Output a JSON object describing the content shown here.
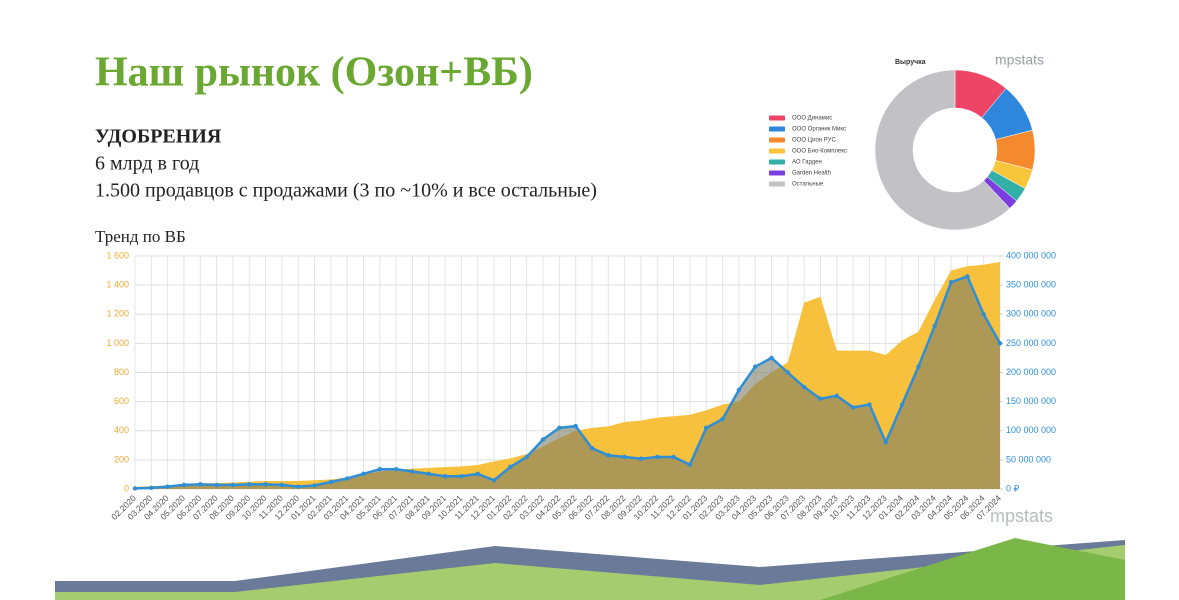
{
  "slide": {
    "title": "Наш рынок (Озон+ВБ)",
    "subtitle": "УДОБРЕНИЯ",
    "lines": [
      "6 млрд в год",
      "1.500 продавцов с продажами (3 по  ~10% и все остальные)"
    ],
    "watermark": "mpstats"
  },
  "chart_data": [
    {
      "type": "pie",
      "donut": true,
      "title": "Выручка",
      "legend": "left",
      "categories": [
        "ООО Динамис",
        "ООО Органик Микс",
        "ООО Цион РУС",
        "ООО Био-Комплекс",
        "АО Гарден",
        "Garden Health",
        "Остальные"
      ],
      "values": [
        11,
        10,
        8,
        4,
        3,
        2,
        62
      ],
      "colors": [
        "#ee4466",
        "#2f86dd",
        "#f5892d",
        "#f8c63a",
        "#32b0a8",
        "#7b3fe0",
        "#c2c2c6"
      ]
    },
    {
      "type": "area",
      "title": "Тренд по ВБ",
      "grid": true,
      "categories": [
        "02.2020",
        "03.2020",
        "04.2020",
        "05.2020",
        "06.2020",
        "07.2020",
        "08.2020",
        "09.2020",
        "10.2020",
        "11.2020",
        "12.2020",
        "01.2021",
        "02.2021",
        "03.2021",
        "04.2021",
        "05.2021",
        "06.2021",
        "07.2021",
        "08.2021",
        "09.2021",
        "10.2021",
        "11.2021",
        "12.2021",
        "01.2022",
        "02.2022",
        "03.2022",
        "04.2022",
        "05.2022",
        "06.2022",
        "07.2022",
        "08.2022",
        "09.2022",
        "10.2022",
        "11.2022",
        "12.2022",
        "01.2023",
        "02.2023",
        "03.2023",
        "04.2023",
        "05.2023",
        "06.2023",
        "07.2023",
        "08.2023",
        "09.2023",
        "10.2023",
        "11.2023",
        "12.2023",
        "01.2024",
        "02.2024",
        "03.2024",
        "04.2024",
        "05.2024",
        "06.2024",
        "07.2024"
      ],
      "series": [
        {
          "color": "#f8c13d",
          "values": [
            15,
            20,
            25,
            35,
            40,
            40,
            45,
            50,
            55,
            55,
            55,
            60,
            65,
            80,
            100,
            120,
            130,
            140,
            145,
            150,
            155,
            165,
            190,
            210,
            240,
            290,
            350,
            400,
            420,
            430,
            460,
            470,
            490,
            500,
            510,
            540,
            580,
            600,
            720,
            800,
            870,
            1280,
            1320,
            950,
            950,
            950,
            920,
            1020,
            1080,
            1300,
            1500,
            1530,
            1540,
            1560
          ]
        },
        {
          "color": "#2e8fd6",
          "axis": "y2",
          "markers": true,
          "values": [
            1000000,
            2000000,
            4000000,
            7000000,
            8000000,
            7000000,
            7000000,
            8000000,
            8000000,
            7000000,
            4000000,
            6000000,
            12000000,
            18000000,
            26000000,
            34000000,
            34000000,
            30000000,
            26000000,
            22000000,
            22000000,
            26000000,
            15000000,
            38000000,
            55000000,
            85000000,
            105000000,
            108000000,
            70000000,
            58000000,
            55000000,
            52000000,
            55000000,
            55000000,
            42000000,
            105000000,
            120000000,
            170000000,
            210000000,
            225000000,
            200000000,
            175000000,
            155000000,
            160000000,
            140000000,
            145000000,
            80000000,
            145000000,
            210000000,
            280000000,
            355000000,
            365000000,
            300000000,
            250000000
          ]
        }
      ],
      "ylim": [
        0,
        1600
      ],
      "yticks": [
        0,
        200,
        400,
        600,
        800,
        {
          "value": 1000,
          "label": "1 000"
        },
        {
          "value": 1200,
          "label": "1 200"
        },
        {
          "value": 1400,
          "label": "1 400"
        },
        {
          "value": 1600,
          "label": "1 600"
        }
      ],
      "y2lim": [
        0,
        400000000
      ],
      "y2ticks": [
        {
          "value": 0,
          "label": "0 ₽"
        },
        {
          "value": 50000000,
          "label": "50 000 000"
        },
        {
          "value": 100000000,
          "label": "100 000 000"
        },
        {
          "value": 150000000,
          "label": "150 000 000"
        },
        {
          "value": 200000000,
          "label": "200 000 000"
        },
        {
          "value": 250000000,
          "label": "250 000 000"
        },
        {
          "value": 300000000,
          "label": "300 000 000"
        },
        {
          "value": 350000000,
          "label": "350 000 000"
        },
        {
          "value": 400000000,
          "label": "400 000 000"
        }
      ]
    }
  ]
}
